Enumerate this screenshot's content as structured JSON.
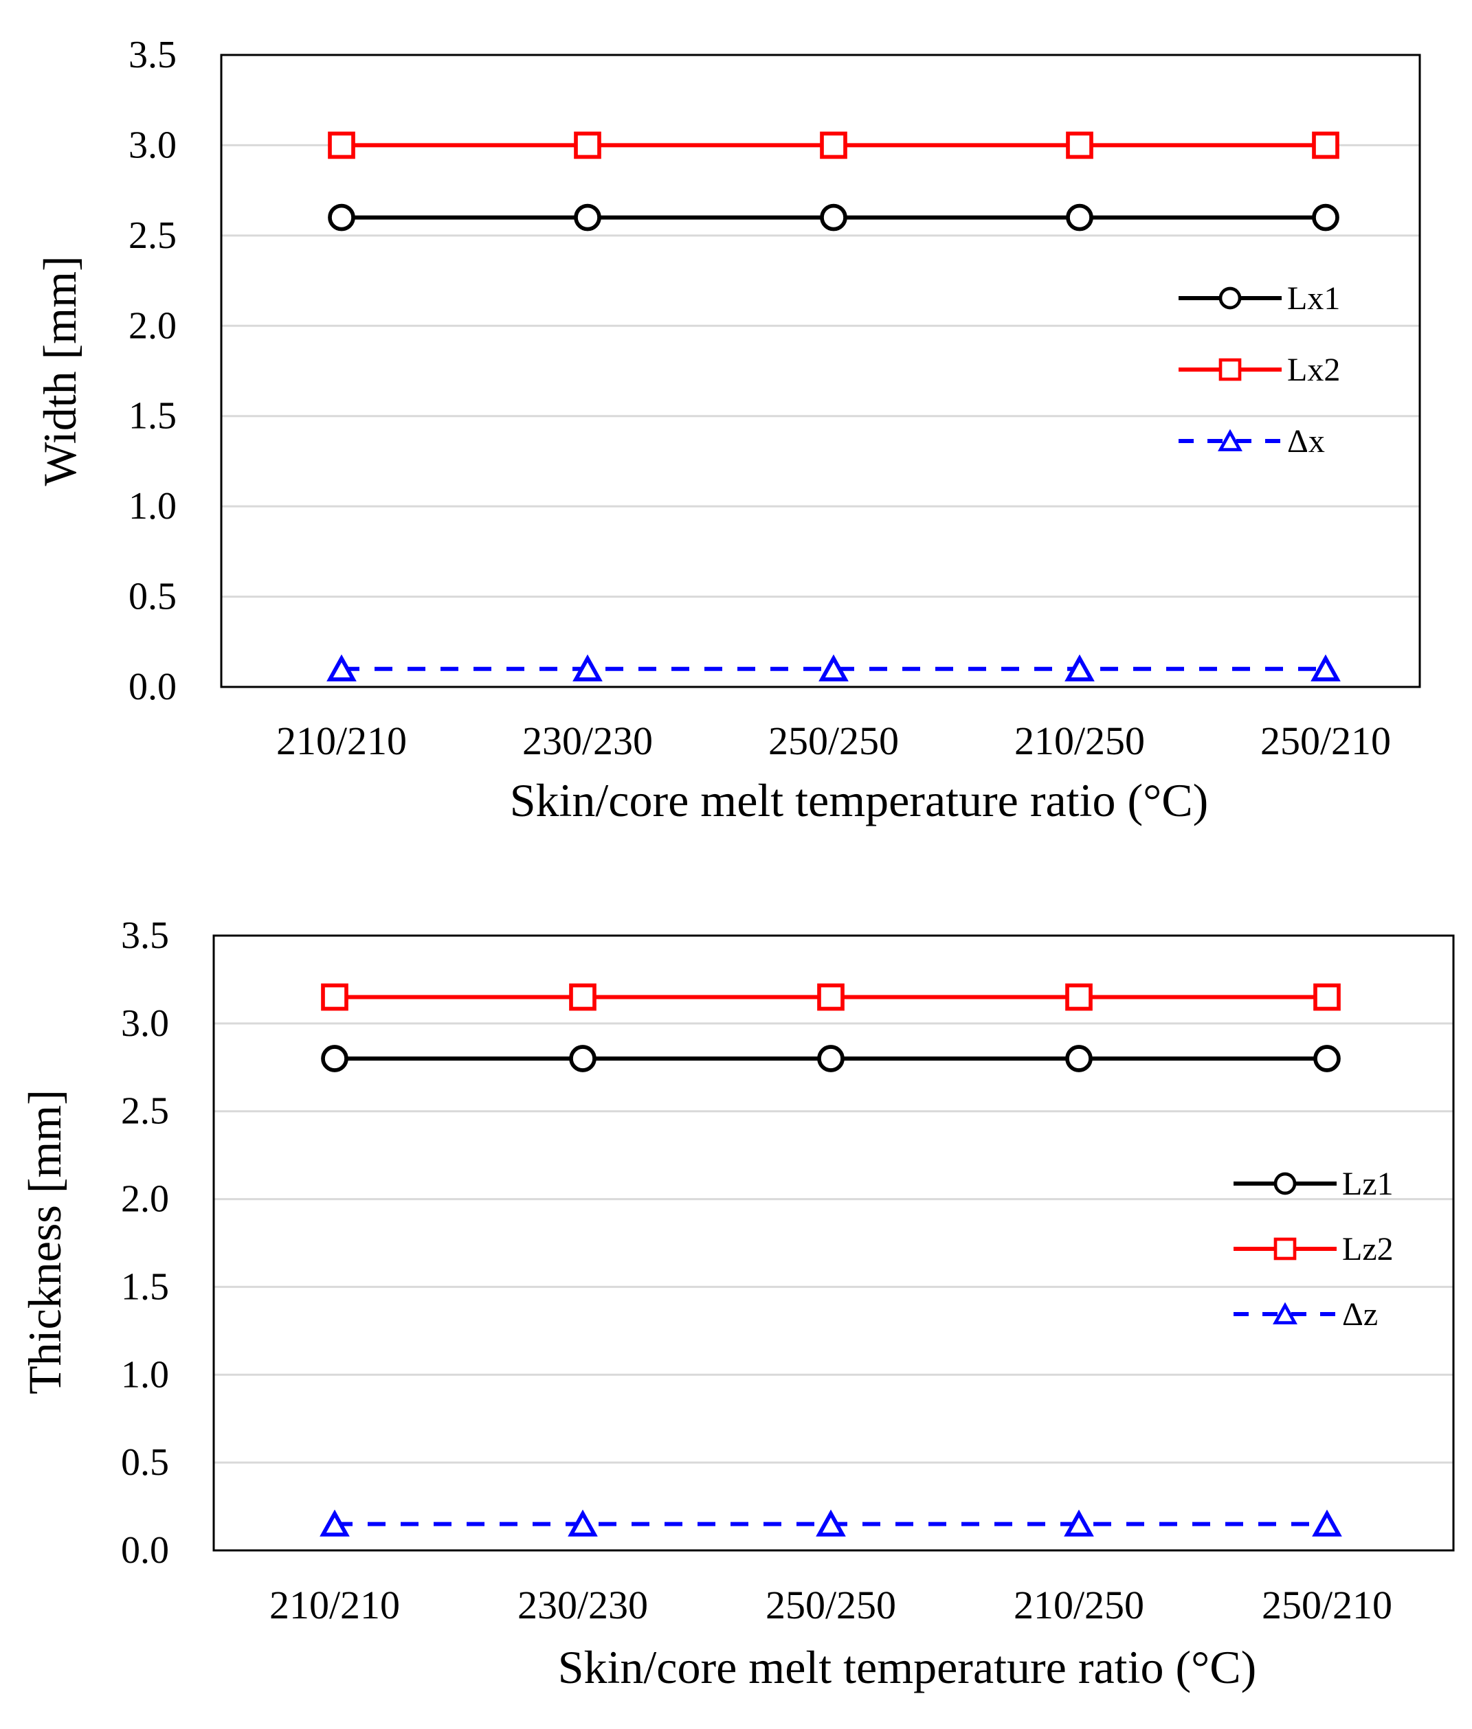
{
  "chart_data": [
    {
      "type": "line",
      "title": "",
      "xlabel": "Skin/core melt temperature ratio  (°C)",
      "ylabel": "Width [mm]",
      "ylim": [
        0,
        3.5
      ],
      "yticks": [
        0.0,
        0.5,
        1.0,
        1.5,
        2.0,
        2.5,
        3.0,
        3.5
      ],
      "ytick_labels": [
        "0.0",
        "0.5",
        "1.0",
        "1.5",
        "2.0",
        "2.5",
        "3.0",
        "3.5"
      ],
      "grid": true,
      "legend_position": "right",
      "categories": [
        "210/210",
        "230/230",
        "250/250",
        "210/250",
        "250/210"
      ],
      "series": [
        {
          "name": "Lx1",
          "values": [
            2.6,
            2.6,
            2.6,
            2.6,
            2.6
          ],
          "color": "#000000",
          "marker": "circle",
          "dash": "solid"
        },
        {
          "name": "Lx2",
          "values": [
            3.0,
            3.0,
            3.0,
            3.0,
            3.0
          ],
          "color": "#ff0000",
          "marker": "square",
          "dash": "solid"
        },
        {
          "name": "Δx",
          "values": [
            0.1,
            0.1,
            0.1,
            0.1,
            0.1
          ],
          "color": "#0000ff",
          "marker": "triangle",
          "dash": "dashed"
        }
      ]
    },
    {
      "type": "line",
      "title": "",
      "xlabel": "Skin/core melt temperature ratio  (°C)",
      "ylabel": "Thickness [mm]",
      "ylim": [
        0,
        3.5
      ],
      "yticks": [
        0.0,
        0.5,
        1.0,
        1.5,
        2.0,
        2.5,
        3.0,
        3.5
      ],
      "ytick_labels": [
        "0.0",
        "0.5",
        "1.0",
        "1.5",
        "2.0",
        "2.5",
        "3.0",
        "3.5"
      ],
      "grid": true,
      "legend_position": "right",
      "categories": [
        "210/210",
        "230/230",
        "250/250",
        "210/250",
        "250/210"
      ],
      "series": [
        {
          "name": "Lz1",
          "values": [
            2.8,
            2.8,
            2.8,
            2.8,
            2.8
          ],
          "color": "#000000",
          "marker": "circle",
          "dash": "solid"
        },
        {
          "name": "Lz2",
          "values": [
            3.15,
            3.15,
            3.15,
            3.15,
            3.15
          ],
          "color": "#ff0000",
          "marker": "square",
          "dash": "solid"
        },
        {
          "name": "Δz",
          "values": [
            0.15,
            0.15,
            0.15,
            0.15,
            0.15
          ],
          "color": "#0000ff",
          "marker": "triangle",
          "dash": "dashed"
        }
      ]
    }
  ]
}
